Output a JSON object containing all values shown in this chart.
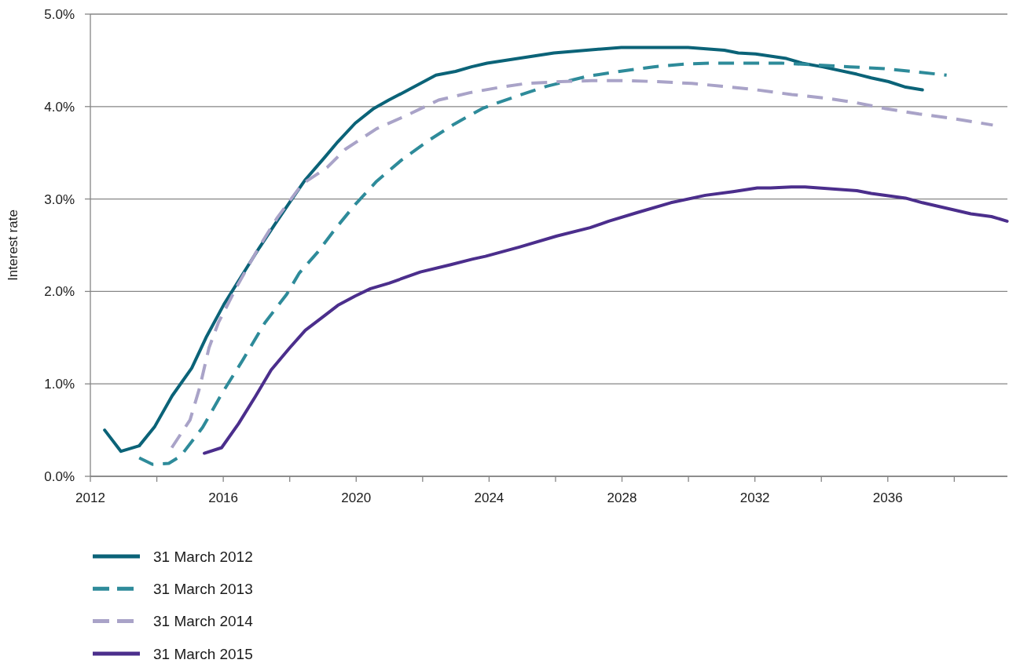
{
  "chart_data": {
    "type": "line",
    "ylabel": "Interest rate",
    "grid": "y",
    "legend": "bottom",
    "xlim": [
      2012,
      2039.6
    ],
    "xticks": [
      2012,
      {
        "value": 2014,
        "label": null
      },
      2016,
      {
        "value": 2018,
        "label": null
      },
      2020,
      {
        "value": 2022,
        "label": null
      },
      2024,
      {
        "value": 2026,
        "label": null
      },
      2028,
      {
        "value": 2030,
        "label": null
      },
      2032,
      {
        "value": 2034,
        "label": null
      },
      2036,
      {
        "value": 2038,
        "label": null
      }
    ],
    "ylim": [
      0,
      5
    ],
    "yticks": [
      {
        "value": 0,
        "label": "0.0%"
      },
      {
        "value": 1,
        "label": "1.0%"
      },
      {
        "value": 2,
        "label": "2.0%"
      },
      {
        "value": 3,
        "label": "3.0%"
      },
      {
        "value": 4,
        "label": "4.0%"
      },
      {
        "value": 5,
        "label": "5.0%"
      }
    ],
    "series": [
      {
        "name": "31 March 2012",
        "color": "#0b6378",
        "line_style": "solid",
        "x": [
          2012.43,
          2012.92,
          2013.47,
          2013.94,
          2014.46,
          2015.05,
          2015.48,
          2016.02,
          2016.54,
          2017.08,
          2017.56,
          2018.03,
          2018.45,
          2019.05,
          2019.45,
          2019.97,
          2020.53,
          2020.98,
          2021.57,
          2022.4,
          2022.99,
          2023.47,
          2023.94,
          2025.95,
          2027.98,
          2029.99,
          2031.08,
          2031.5,
          2032.02,
          2032.95,
          2033.42,
          2034.03,
          2035.07,
          2035.5,
          2036.02,
          2036.54,
          2037.04
        ],
        "values": [
          0.5,
          0.27,
          0.33,
          0.54,
          0.87,
          1.17,
          1.5,
          1.86,
          2.16,
          2.47,
          2.73,
          2.98,
          3.2,
          3.45,
          3.62,
          3.82,
          3.98,
          4.07,
          4.18,
          4.34,
          4.38,
          4.43,
          4.47,
          4.58,
          4.64,
          4.64,
          4.61,
          4.58,
          4.57,
          4.52,
          4.47,
          4.43,
          4.35,
          4.31,
          4.27,
          4.21,
          4.18
        ]
      },
      {
        "name": "31 March 2013",
        "color": "#2e8b9a",
        "line_style": "dashed",
        "x": [
          2013.47,
          2013.87,
          2014.36,
          2014.72,
          2015.38,
          2015.95,
          2016.59,
          2017.25,
          2017.91,
          2018.29,
          2018.83,
          2019.4,
          2019.97,
          2020.61,
          2021.36,
          2022.21,
          2022.95,
          2023.8,
          2024.17,
          2024.81,
          2025.74,
          2026.99,
          2027.93,
          2028.95,
          2029.9,
          2030.72,
          2032.8,
          2033.84,
          2034.86,
          2035.9,
          2036.73,
          2037.77
        ],
        "values": [
          0.2,
          0.13,
          0.14,
          0.22,
          0.53,
          0.89,
          1.26,
          1.66,
          1.97,
          2.2,
          2.42,
          2.69,
          2.94,
          3.19,
          3.42,
          3.64,
          3.81,
          3.98,
          4.03,
          4.11,
          4.22,
          4.33,
          4.38,
          4.43,
          4.46,
          4.47,
          4.47,
          4.45,
          4.43,
          4.41,
          4.38,
          4.34
        ]
      },
      {
        "name": "31 March 2014",
        "color": "#a9a3c8",
        "line_style": "dashed",
        "x": [
          2014.45,
          2015.0,
          2015.29,
          2015.57,
          2015.85,
          2016.42,
          2017.06,
          2017.63,
          2018.37,
          2019.12,
          2019.68,
          2020.61,
          2021.55,
          2022.48,
          2023.42,
          2024.35,
          2025.12,
          2026.16,
          2027.09,
          2028.12,
          2029.07,
          2030.1,
          2031.03,
          2032.07,
          2033.11,
          2034.15,
          2035.07,
          2035.9,
          2036.94,
          2037.98,
          2039.16
        ],
        "values": [
          0.31,
          0.61,
          0.96,
          1.39,
          1.66,
          2.06,
          2.47,
          2.8,
          3.16,
          3.34,
          3.54,
          3.76,
          3.91,
          4.07,
          4.15,
          4.21,
          4.25,
          4.27,
          4.28,
          4.28,
          4.27,
          4.25,
          4.22,
          4.18,
          4.13,
          4.09,
          4.04,
          3.98,
          3.92,
          3.87,
          3.8
        ]
      },
      {
        "name": "31 March 2015",
        "color": "#4b2e8c",
        "line_style": "solid",
        "x": [
          2015.43,
          2015.95,
          2016.46,
          2016.96,
          2017.44,
          2018.0,
          2018.47,
          2019.02,
          2019.45,
          2019.97,
          2020.43,
          2020.99,
          2021.93,
          2022.85,
          2023.51,
          2023.89,
          2024.91,
          2026.04,
          2027.04,
          2027.6,
          2028.43,
          2029.47,
          2030.51,
          2031.34,
          2032.07,
          2032.47,
          2033.1,
          2033.51,
          2035.07,
          2035.5,
          2036.53,
          2037.04,
          2038.5,
          2039.12,
          2039.59
        ],
        "values": [
          0.25,
          0.31,
          0.57,
          0.86,
          1.15,
          1.39,
          1.58,
          1.73,
          1.85,
          1.95,
          2.03,
          2.09,
          2.21,
          2.29,
          2.35,
          2.38,
          2.48,
          2.6,
          2.69,
          2.76,
          2.85,
          2.96,
          3.04,
          3.08,
          3.12,
          3.12,
          3.13,
          3.13,
          3.09,
          3.06,
          3.01,
          2.96,
          2.84,
          2.81,
          2.76
        ]
      }
    ]
  }
}
